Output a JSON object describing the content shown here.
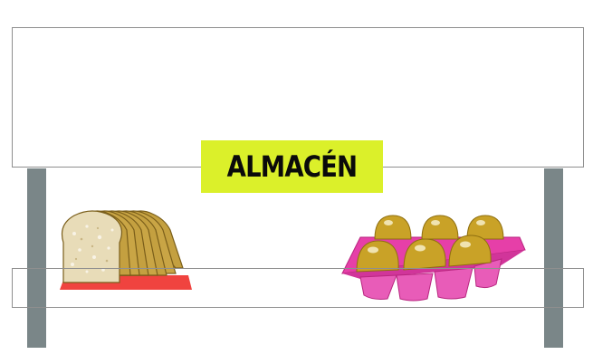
{
  "store": {
    "sign_label": "ALMACÉN"
  },
  "products": [
    {
      "name": "bread-loaf",
      "icon": "sliced-bread-icon"
    },
    {
      "name": "egg-carton",
      "icon": "egg-carton-icon"
    }
  ],
  "colors": {
    "sign_background": "#dbf02a",
    "post": "#7a8688",
    "bread_mat": "#f0433f",
    "egg_carton": "#e63fa8",
    "eggs": "#c9a227",
    "bread_crust": "#c4a040"
  }
}
